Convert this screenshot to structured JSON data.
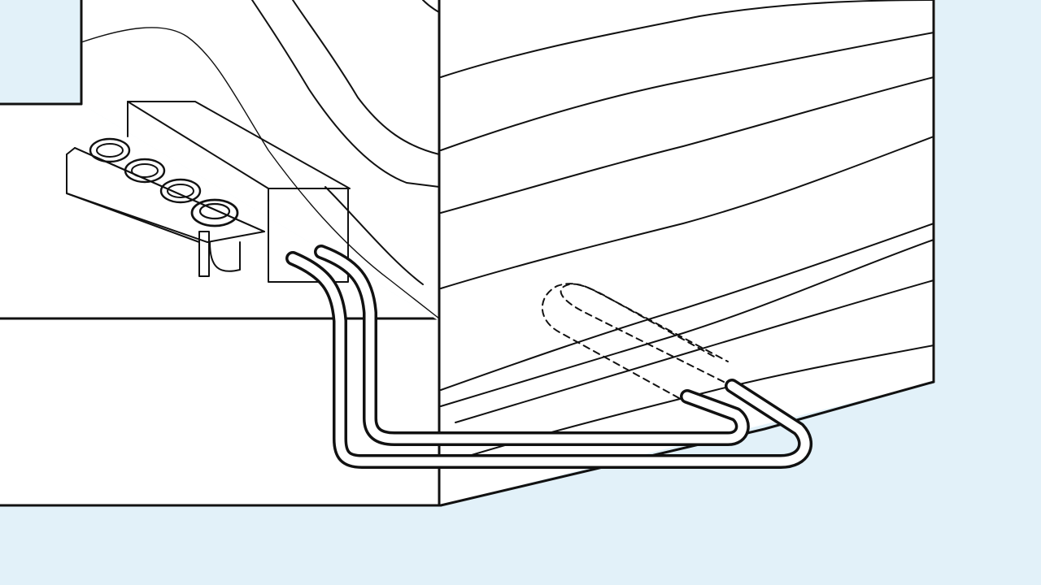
{
  "diagram": {
    "subject": "roof-corner-with-anchor-and-pipes",
    "colors": {
      "background": "#e2f1f9",
      "surface": "#ffffff",
      "ink": "#111111"
    },
    "parts": [
      {
        "id": "left-block",
        "label": ""
      },
      {
        "id": "back-wall",
        "label": ""
      },
      {
        "id": "right-block",
        "label": ""
      },
      {
        "id": "bracket",
        "label": ""
      },
      {
        "id": "junction-box",
        "label": ""
      },
      {
        "id": "pipe-loop",
        "label": ""
      },
      {
        "id": "hidden-loop",
        "label": ""
      }
    ],
    "text_labels": []
  }
}
